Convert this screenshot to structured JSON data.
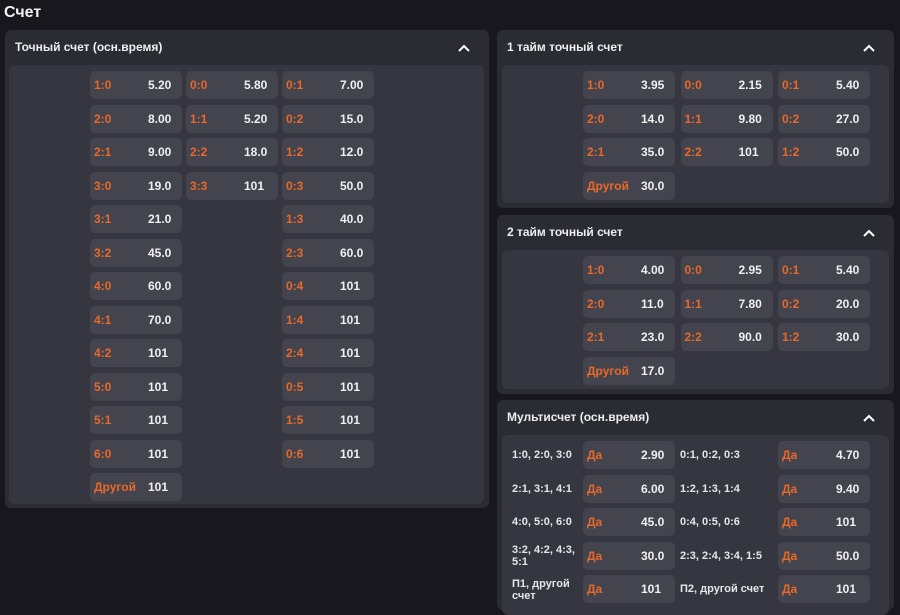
{
  "page_title": "Счет",
  "accent": "#e8692a",
  "exact": {
    "title": "Точный счет (осн.время)",
    "columns": [
      [
        [
          "1:0",
          "5.20"
        ],
        [
          "2:0",
          "8.00"
        ],
        [
          "2:1",
          "9.00"
        ],
        [
          "3:0",
          "19.0"
        ],
        [
          "3:1",
          "21.0"
        ],
        [
          "3:2",
          "45.0"
        ],
        [
          "4:0",
          "60.0"
        ],
        [
          "4:1",
          "70.0"
        ],
        [
          "4:2",
          "101"
        ],
        [
          "5:0",
          "101"
        ],
        [
          "5:1",
          "101"
        ],
        [
          "6:0",
          "101"
        ],
        [
          "Другой",
          "101"
        ]
      ],
      [
        [
          "0:0",
          "5.80"
        ],
        [
          "1:1",
          "5.20"
        ],
        [
          "2:2",
          "18.0"
        ],
        [
          "3:3",
          "101"
        ]
      ],
      [
        [
          "0:1",
          "7.00"
        ],
        [
          "0:2",
          "15.0"
        ],
        [
          "1:2",
          "12.0"
        ],
        [
          "0:3",
          "50.0"
        ],
        [
          "1:3",
          "40.0"
        ],
        [
          "2:3",
          "60.0"
        ],
        [
          "0:4",
          "101"
        ],
        [
          "1:4",
          "101"
        ],
        [
          "2:4",
          "101"
        ],
        [
          "0:5",
          "101"
        ],
        [
          "1:5",
          "101"
        ],
        [
          "0:6",
          "101"
        ]
      ]
    ]
  },
  "half1": {
    "title": "1 тайм точный счет",
    "columns": [
      [
        [
          "1:0",
          "3.95"
        ],
        [
          "2:0",
          "14.0"
        ],
        [
          "2:1",
          "35.0"
        ],
        [
          "Другой",
          "30.0"
        ]
      ],
      [
        [
          "0:0",
          "2.15"
        ],
        [
          "1:1",
          "9.80"
        ],
        [
          "2:2",
          "101"
        ]
      ],
      [
        [
          "0:1",
          "5.40"
        ],
        [
          "0:2",
          "27.0"
        ],
        [
          "1:2",
          "50.0"
        ]
      ]
    ]
  },
  "half2": {
    "title": "2 тайм точный счет",
    "columns": [
      [
        [
          "1:0",
          "4.00"
        ],
        [
          "2:0",
          "11.0"
        ],
        [
          "2:1",
          "23.0"
        ],
        [
          "Другой",
          "17.0"
        ]
      ],
      [
        [
          "0:0",
          "2.95"
        ],
        [
          "1:1",
          "7.80"
        ],
        [
          "2:2",
          "90.0"
        ]
      ],
      [
        [
          "0:1",
          "5.40"
        ],
        [
          "0:2",
          "20.0"
        ],
        [
          "1:2",
          "30.0"
        ]
      ]
    ]
  },
  "multi": {
    "title": "Мультисчет (осн.время)",
    "rows": [
      [
        {
          "label": "1:0, 2:0, 3:0",
          "key": "Да",
          "odds": "2.90"
        },
        {
          "label": "0:1, 0:2, 0:3",
          "key": "Да",
          "odds": "4.70"
        }
      ],
      [
        {
          "label": "2:1, 3:1, 4:1",
          "key": "Да",
          "odds": "6.00"
        },
        {
          "label": "1:2, 1:3, 1:4",
          "key": "Да",
          "odds": "9.40"
        }
      ],
      [
        {
          "label": "4:0, 5:0, 6:0",
          "key": "Да",
          "odds": "45.0"
        },
        {
          "label": "0:4, 0:5, 0:6",
          "key": "Да",
          "odds": "101"
        }
      ],
      [
        {
          "label": "3:2, 4:2, 4:3, 5:1",
          "key": "Да",
          "odds": "30.0"
        },
        {
          "label": "2:3, 2:4, 3:4, 1:5",
          "key": "Да",
          "odds": "50.0"
        }
      ],
      [
        {
          "label": "П1, другой счет",
          "key": "Да",
          "odds": "101"
        },
        {
          "label": "П2, другой счет",
          "key": "Да",
          "odds": "101"
        }
      ]
    ]
  }
}
